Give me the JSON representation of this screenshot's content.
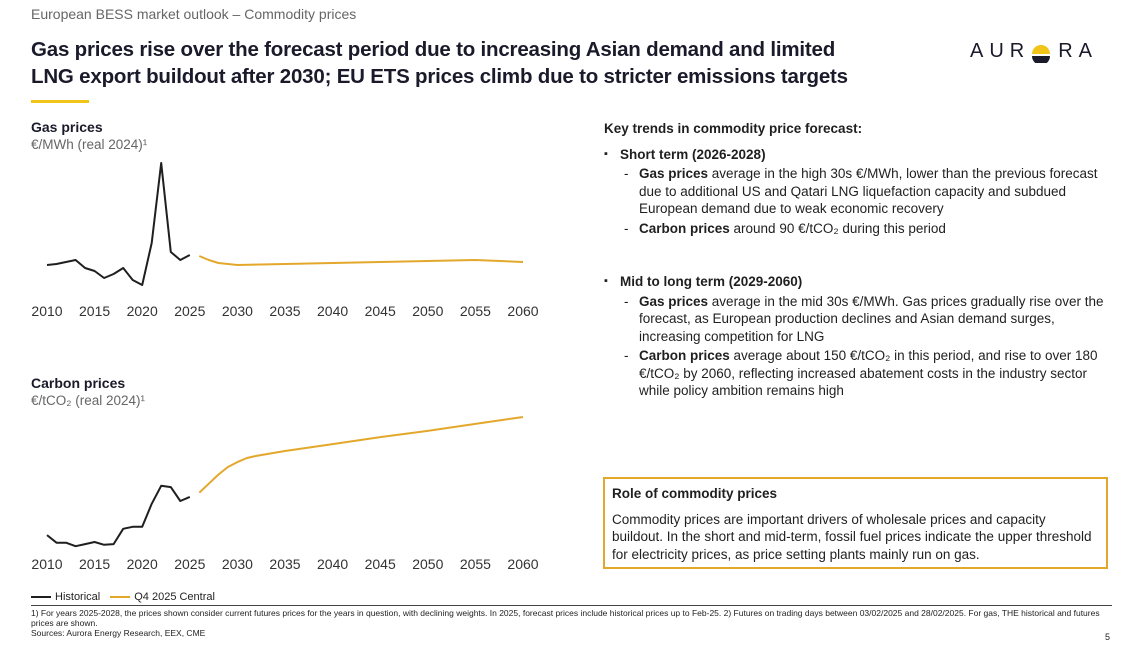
{
  "header": {
    "section": "European BESS market outlook – Commodity prices",
    "title": [
      "Gas prices rise over the forecast period due to increasing Asian demand and limited",
      "LNG export buildout after 2030; EU ETS prices climb due to stricter emissions targets"
    ],
    "logo_left": "AUR",
    "logo_right": "RA"
  },
  "chart_data": [
    {
      "type": "line",
      "title": "Gas prices",
      "subtitle": "€/MWh (real 2024)¹",
      "xlim": [
        2010,
        2060
      ],
      "xticks": [
        2010,
        2015,
        2020,
        2025,
        2030,
        2035,
        2040,
        2045,
        2050,
        2055,
        2060
      ],
      "ylim": [
        0,
        150
      ],
      "series": [
        {
          "name": "Historical",
          "color": "#1f1f1f",
          "x": [
            2010,
            2011,
            2012,
            2013,
            2014,
            2015,
            2016,
            2017,
            2018,
            2019,
            2020,
            2021,
            2022,
            2023,
            2024,
            2025
          ],
          "values": [
            36,
            37,
            39,
            41,
            33,
            30,
            23,
            27,
            33,
            21,
            16,
            58,
            138,
            49,
            41,
            46
          ]
        },
        {
          "name": "Q4 2025 Central",
          "color": "#e3a82b",
          "x": [
            2026,
            2027,
            2028,
            2029,
            2030,
            2035,
            2040,
            2045,
            2050,
            2055,
            2060
          ],
          "values": [
            45,
            41,
            38,
            37,
            36,
            37,
            38,
            39,
            40,
            41,
            39
          ]
        }
      ]
    },
    {
      "type": "line",
      "title": "Carbon prices",
      "subtitle": "€/tCO₂ (real 2024)¹",
      "xlim": [
        2010,
        2060
      ],
      "xticks": [
        2010,
        2015,
        2020,
        2025,
        2030,
        2035,
        2040,
        2045,
        2050,
        2055,
        2060
      ],
      "ylim": [
        0,
        200
      ],
      "series": [
        {
          "name": "Historical",
          "color": "#1f1f1f",
          "x": [
            2010,
            2011,
            2012,
            2013,
            2014,
            2015,
            2016,
            2017,
            2018,
            2019,
            2020,
            2021,
            2022,
            2023,
            2024,
            2025
          ],
          "values": [
            20,
            9,
            9,
            4,
            7,
            10,
            6,
            7,
            29,
            32,
            32,
            65,
            91,
            89,
            69,
            75
          ]
        },
        {
          "name": "Q4 2025 Central",
          "color": "#e3a82b",
          "x": [
            2026,
            2027,
            2028,
            2029,
            2030,
            2031,
            2032,
            2035,
            2040,
            2045,
            2050,
            2055,
            2060
          ],
          "values": [
            81,
            94,
            107,
            118,
            125,
            131,
            134,
            141,
            151,
            161,
            170,
            180,
            190
          ]
        }
      ]
    }
  ],
  "key_trends": {
    "title": "Key trends in commodity price forecast:",
    "sections": [
      {
        "heading": "Short term (2026-2028)",
        "items": [
          {
            "bold": "Gas prices",
            "text": " average in the high 30s €/MWh, lower than the previous forecast due to additional US and Qatari LNG liquefaction capacity and subdued European demand due to weak economic recovery"
          },
          {
            "bold": "Carbon prices",
            "text": " around 90 €/tCO₂ during this period"
          }
        ]
      },
      {
        "heading": "Mid to long term (2029-2060)",
        "items": [
          {
            "bold": "Gas prices",
            "text": " average in the mid 30s €/MWh. Gas prices gradually rise over the forecast, as European production declines and Asian demand surges, increasing competition for LNG"
          },
          {
            "bold": "Carbon prices",
            "text": " average  about 150 €/tCO₂ in this period, and rise to  over 180 €/tCO₂ by 2060, reflecting increased abatement costs in the industry sector while policy ambition remains high"
          }
        ]
      }
    ]
  },
  "role_box": {
    "title": "Role of commodity prices",
    "text": "Commodity prices are important drivers of wholesale prices and capacity buildout. In the short and mid-term, fossil fuel prices indicate the upper threshold for electricity prices, as price setting plants mainly run on gas."
  },
  "footnotes": [
    "1) For years 2025-2028, the prices shown consider current futures prices for the years in question, with declining weights. In 2025, forecast prices include historical prices up to Feb-25. 2) Futures on trading days between 03/02/2025 and 28/02/2025. For gas, THE historical and futures prices are shown.",
    "Sources: Aurora Energy Research, EEX, CME"
  ],
  "page_number": "5"
}
